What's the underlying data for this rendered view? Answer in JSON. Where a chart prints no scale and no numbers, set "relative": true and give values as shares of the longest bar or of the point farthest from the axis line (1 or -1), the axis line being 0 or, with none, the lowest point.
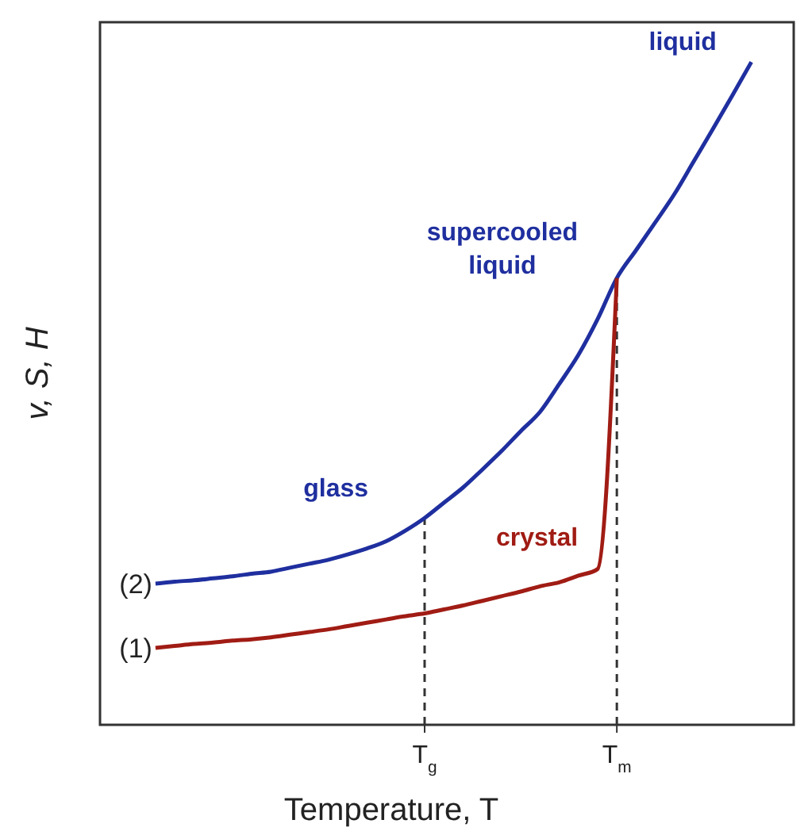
{
  "chart_data": {
    "type": "line",
    "relative": true,
    "xlabel": "Temperature, T",
    "ylabel": "v, S, H",
    "categories": [
      null,
      null,
      null,
      null,
      null,
      null,
      null,
      null,
      null,
      null,
      null,
      null,
      null,
      null,
      "T$_{g}$",
      null,
      null,
      null,
      null,
      null,
      null,
      null,
      null,
      null,
      "T$_{m}$",
      null,
      null,
      null,
      null,
      null,
      null,
      null
    ],
    "series": [
      {
        "name": "(2)",
        "color": "#1f2f9f",
        "values": [
          0.213,
          0.216,
          0.218,
          0.221,
          0.224,
          0.228,
          0.231,
          0.237,
          0.243,
          0.249,
          0.257,
          0.266,
          0.277,
          0.293,
          0.312,
          0.335,
          0.358,
          0.385,
          0.413,
          0.443,
          0.472,
          0.514,
          0.558,
          0.612,
          0.674,
          0.716,
          0.758,
          0.801,
          0.85,
          0.899,
          0.949,
          1
        ]
      },
      {
        "name": "(1)",
        "color": "#a01c14",
        "values": [
          0.116,
          0.119,
          0.122,
          0.124,
          0.127,
          0.129,
          0.132,
          0.136,
          0.14,
          0.144,
          0.149,
          0.154,
          0.159,
          0.164,
          0.168,
          0.174,
          0.18,
          0.187,
          0.194,
          0.201,
          0.209,
          0.215,
          0.225,
          0.235,
          0.674,
          null,
          null,
          null,
          null,
          null,
          null,
          null
        ]
      }
    ],
    "ref_lines": [
      {
        "axis": "x",
        "value": "T$_{g}$",
        "line_style": "dashed"
      },
      {
        "axis": "x",
        "value": "T$_{m}$",
        "line_style": "dashed"
      }
    ],
    "annotations": [
      "liquid",
      "supercooled liquid",
      "glass",
      "crystal"
    ],
    "legend": false,
    "marker": "none",
    "line_style": "solid"
  }
}
